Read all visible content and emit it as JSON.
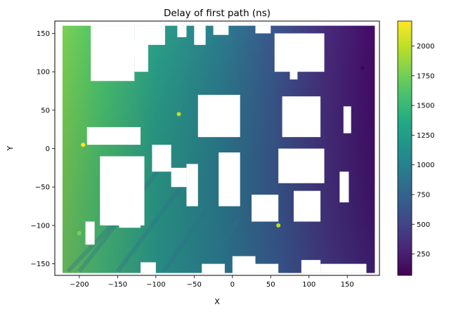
{
  "chart_data": {
    "type": "heatmap",
    "title": "Delay of first path (ns)",
    "xlabel": "X",
    "ylabel": "Y",
    "xlim": [
      -232,
      192
    ],
    "ylim": [
      -165,
      166
    ],
    "xticks": [
      -200,
      -150,
      -100,
      -50,
      0,
      50,
      100,
      150
    ],
    "yticks": [
      -150,
      -100,
      -50,
      0,
      50,
      100,
      150
    ],
    "colorbar": {
      "colormap": "viridis",
      "range": [
        70,
        2210
      ],
      "ticks": [
        250,
        500,
        750,
        1000,
        1250,
        1500,
        1750,
        2000
      ]
    },
    "grid": false,
    "coverage": {
      "outer_bounds": {
        "x": [
          -222,
          186
        ],
        "y": [
          -162,
          160
        ]
      },
      "notable_values": [
        {
          "x": 170,
          "y": 105,
          "delay_ns": 80
        },
        {
          "x": -200,
          "y": -110,
          "delay_ns": 1700
        },
        {
          "x": -50,
          "y": -150,
          "delay_ns": 950
        },
        {
          "x": 60,
          "y": -100,
          "delay_ns": 2000
        },
        {
          "x": -195,
          "y": 5,
          "delay_ns": 2200
        },
        {
          "x": -70,
          "y": 45,
          "delay_ns": 1900
        }
      ]
    }
  }
}
